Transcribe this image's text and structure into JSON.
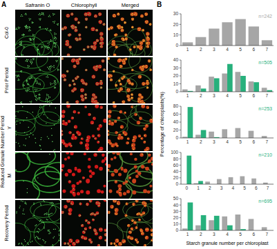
{
  "panel_a": {
    "label": "A",
    "columns": [
      "Safranin O",
      "Chlorophyll",
      "Merged"
    ],
    "rows": [
      "Col-0",
      "Prior Period",
      "Y",
      "M",
      "Recovery Period"
    ],
    "group_label": "Reduced Granule Number Period"
  },
  "panel_b": {
    "label": "B",
    "x_label": "Starch granule number per chloroplast",
    "y_label": "Percentage of chloroplasts(%)"
  },
  "chart_data": [
    {
      "type": "bar",
      "annotation": "n=242",
      "categories": [
        "1",
        "2",
        "3",
        "4",
        "5",
        "6",
        "7"
      ],
      "series": [
        {
          "color": "#a6a6a6",
          "values": [
            3,
            8,
            16,
            22,
            25,
            18,
            5
          ]
        }
      ],
      "ylim": [
        0,
        30
      ],
      "yticks": [
        0,
        10,
        20,
        30
      ]
    },
    {
      "type": "bar",
      "annotation": "n=505",
      "categories": [
        "1",
        "2",
        "3",
        "4",
        "5",
        "6",
        "7"
      ],
      "series": [
        {
          "color": "#a6a6a6",
          "values": [
            3,
            8,
            19,
            23,
            25,
            13,
            5
          ]
        },
        {
          "color": "#27b07c",
          "values": [
            1,
            4,
            17,
            35,
            20,
            12,
            2
          ]
        }
      ],
      "ylim": [
        0,
        40
      ],
      "yticks": [
        0,
        10,
        20,
        30,
        40
      ]
    },
    {
      "type": "bar",
      "annotation": "n=253",
      "categories": [
        "1",
        "2",
        "3",
        "4",
        "5",
        "6",
        "7"
      ],
      "series": [
        {
          "color": "#a6a6a6",
          "values": [
            3,
            8,
            16,
            22,
            25,
            18,
            5
          ]
        },
        {
          "color": "#27b07c",
          "values": [
            78,
            20,
            2,
            0,
            0,
            0,
            0
          ]
        }
      ],
      "ylim": [
        0,
        80
      ],
      "yticks": [
        0,
        20,
        40,
        60,
        80
      ]
    },
    {
      "type": "bar",
      "annotation": "n=210",
      "categories": [
        "0",
        "1",
        "2",
        "3",
        "4",
        "5",
        "6",
        "7"
      ],
      "series": [
        {
          "color": "#a6a6a6",
          "values": [
            0,
            3,
            8,
            16,
            22,
            25,
            18,
            5
          ]
        },
        {
          "color": "#27b07c",
          "values": [
            90,
            10,
            0,
            0,
            0,
            0,
            0,
            0
          ]
        }
      ],
      "ylim": [
        0,
        100
      ],
      "yticks": [
        0,
        20,
        40,
        60,
        80,
        100
      ]
    },
    {
      "type": "bar",
      "annotation": "n=695",
      "categories": [
        "1",
        "2",
        "3",
        "4",
        "5",
        "6",
        "7"
      ],
      "series": [
        {
          "color": "#a6a6a6",
          "values": [
            3,
            8,
            16,
            22,
            25,
            18,
            5
          ]
        },
        {
          "color": "#27b07c",
          "values": [
            44,
            24,
            23,
            8,
            2,
            0,
            0
          ]
        }
      ],
      "ylim": [
        0,
        50
      ],
      "yticks": [
        0,
        10,
        20,
        30,
        40,
        50
      ]
    }
  ]
}
